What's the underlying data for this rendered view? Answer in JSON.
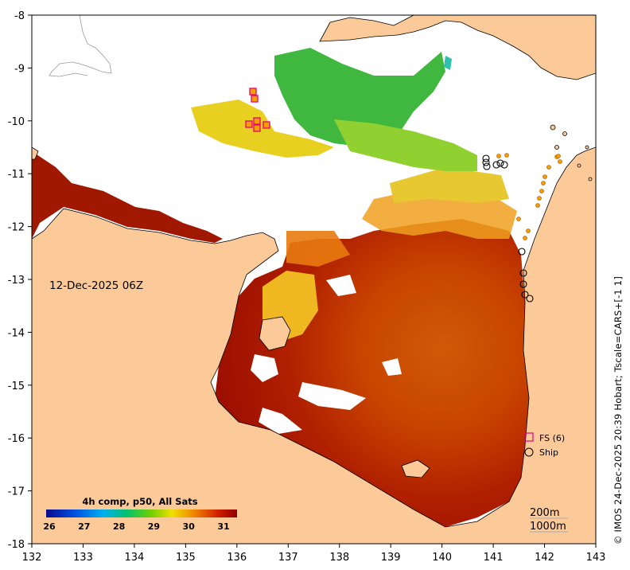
{
  "map": {
    "date_label": "12-Dec-2025 06Z",
    "credit": "© IMOS 24-Dec-2025 20:39 Hobart; Tscale=CARS+[-1 1]",
    "colorbar": {
      "title": "4h comp, p50, All Sats",
      "ticks": [
        "26",
        "27",
        "28",
        "29",
        "30",
        "31"
      ]
    },
    "legend": {
      "fs_label": "FS (6)",
      "ship_label": "Ship"
    },
    "contours": {
      "c200": "200m",
      "c1000": "1000m"
    },
    "x_ticks": [
      "132",
      "133",
      "134",
      "135",
      "136",
      "137",
      "138",
      "139",
      "140",
      "141",
      "142",
      "143"
    ],
    "y_ticks": [
      "-8",
      "-9",
      "-10",
      "-11",
      "-12",
      "-13",
      "-14",
      "-15",
      "-16",
      "-17",
      "-18"
    ],
    "colors": {
      "land": "#fcc999",
      "fs_marker": "#e8007c",
      "ship_marker": "#000000",
      "obs_dot": "#f5a000"
    }
  }
}
